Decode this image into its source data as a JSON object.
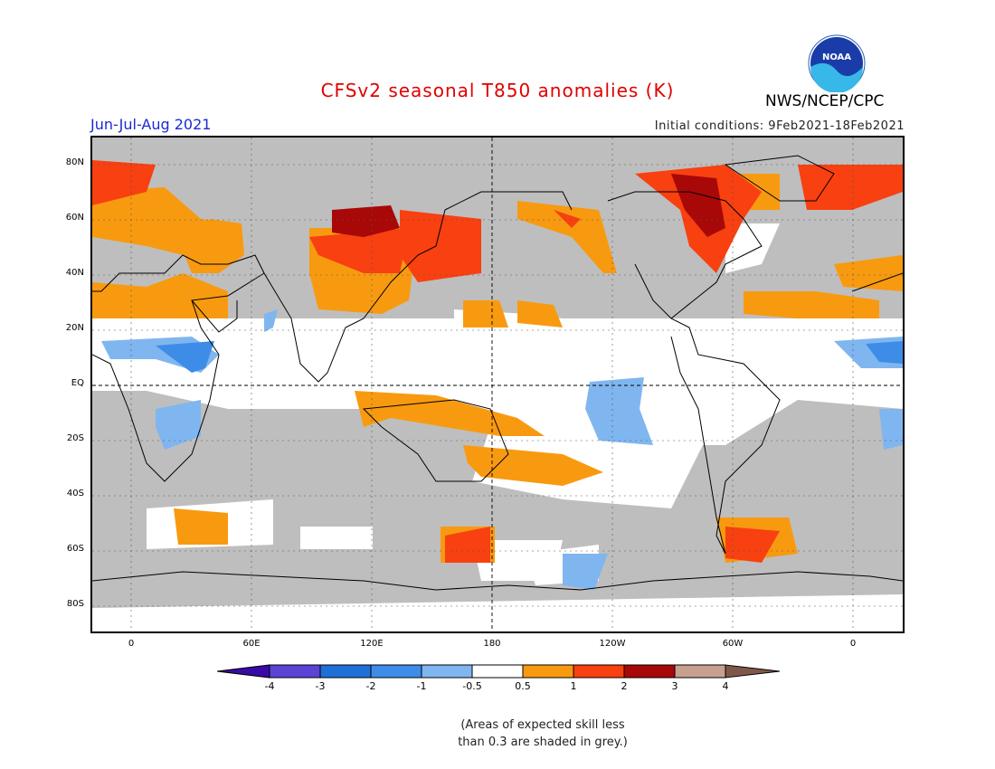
{
  "title": "CFSv2 seasonal T850 anomalies (K)",
  "org": "NWS/NCEP/CPC",
  "season": "Jun-Jul-Aug 2021",
  "initial_conditions": "Initial conditions: 9Feb2021-18Feb2021",
  "logo_text": "NOAA",
  "lat_labels": [
    "80N",
    "60N",
    "40N",
    "20N",
    "EQ",
    "20S",
    "40S",
    "60S",
    "80S"
  ],
  "lon_labels": [
    "0",
    "60E",
    "120E",
    "180",
    "120W",
    "60W",
    "0"
  ],
  "colorbar": {
    "labels": [
      "-4",
      "-3",
      "-2",
      "-1",
      "-0.5",
      "0.5",
      "1",
      "2",
      "3",
      "4"
    ],
    "colors": [
      "#3a0aa8",
      "#5a44d6",
      "#1f6fd8",
      "#3d8ce8",
      "#7fb6f0",
      "#ffffff",
      "#f89a10",
      "#f84010",
      "#a80808",
      "#c8a090",
      "#80584a"
    ]
  },
  "note_line1": "(Areas of expected skill less",
  "note_line2": "than 0.3 are shaded in grey.)",
  "colors": {
    "grey": "#bebebe",
    "white": "#ffffff",
    "orange": "#f89a10",
    "red": "#f84010",
    "darkred": "#a80808",
    "lightblue": "#7fb6f0",
    "blue": "#3d8ce8"
  }
}
